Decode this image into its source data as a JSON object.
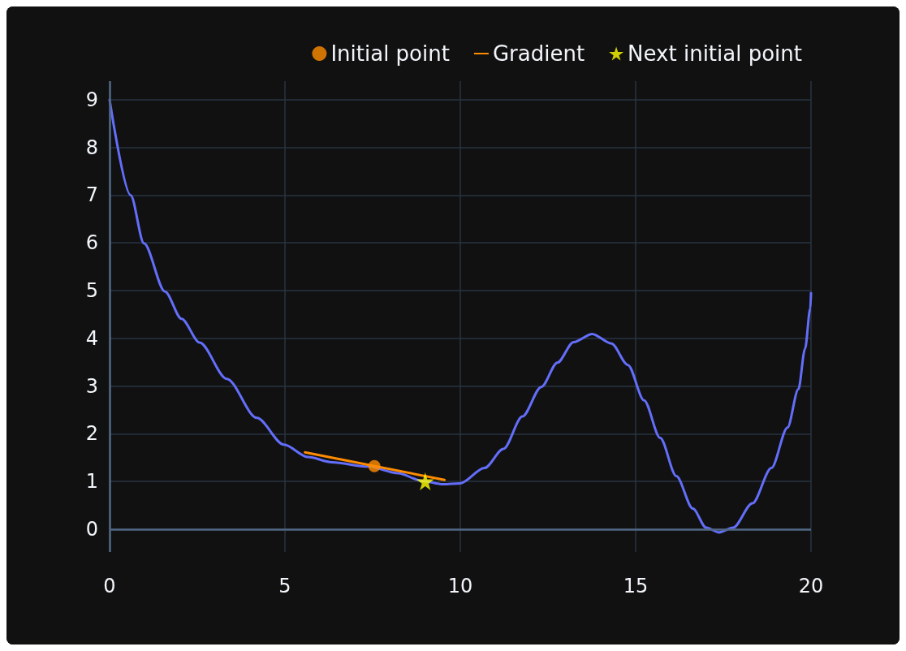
{
  "chart_data": {
    "type": "line",
    "xlim": [
      0,
      20
    ],
    "xticks": [
      0,
      5,
      10,
      15,
      20
    ],
    "ylim": [
      -0.48,
      9.39
    ],
    "yticks": [
      0,
      1,
      2,
      3,
      4,
      5,
      6,
      7,
      8,
      9
    ],
    "grid": true,
    "legend": "top right",
    "series": [
      {
        "color": "#636efa",
        "marker": "none",
        "x": [
          0,
          0.6,
          0.98,
          1.58,
          2.05,
          2.57,
          3.34,
          4.2,
          4.97,
          5.66,
          6.34,
          7.37,
          8.23,
          8.91,
          9.51,
          10.0,
          10.69,
          11.23,
          11.77,
          12.31,
          12.77,
          13.23,
          13.76,
          14.31,
          14.78,
          15.24,
          15.7,
          16.16,
          16.63,
          17.01,
          17.38,
          17.78,
          18.33,
          18.87,
          19.33,
          19.64,
          19.83,
          19.98,
          20
        ],
        "values": [
          9,
          7.0,
          5.99,
          4.98,
          4.41,
          3.91,
          3.15,
          2.33,
          1.77,
          1.51,
          1.4,
          1.31,
          1.17,
          1.01,
          0.94,
          0.96,
          1.28,
          1.68,
          2.36,
          2.98,
          3.49,
          3.92,
          4.09,
          3.89,
          3.44,
          2.7,
          1.91,
          1.11,
          0.43,
          0.03,
          -0.07,
          0.03,
          0.54,
          1.28,
          2.13,
          2.93,
          3.78,
          4.63,
          4.95
        ]
      },
      {
        "type": "scatter",
        "name": "Initial point",
        "color": "#ff8c00",
        "marker": "circle",
        "x": [
          7.55
        ],
        "values": [
          1.32
        ]
      },
      {
        "name": "Gradient",
        "color": "#ff8c00",
        "marker": "none",
        "x": [
          5.57,
          9.55
        ],
        "values": [
          1.61,
          1.03
        ]
      },
      {
        "type": "scatter",
        "name": "Next initial point",
        "color": "#ffff00",
        "marker": "star",
        "x": [
          9.0
        ],
        "values": [
          1.0
        ]
      }
    ]
  }
}
